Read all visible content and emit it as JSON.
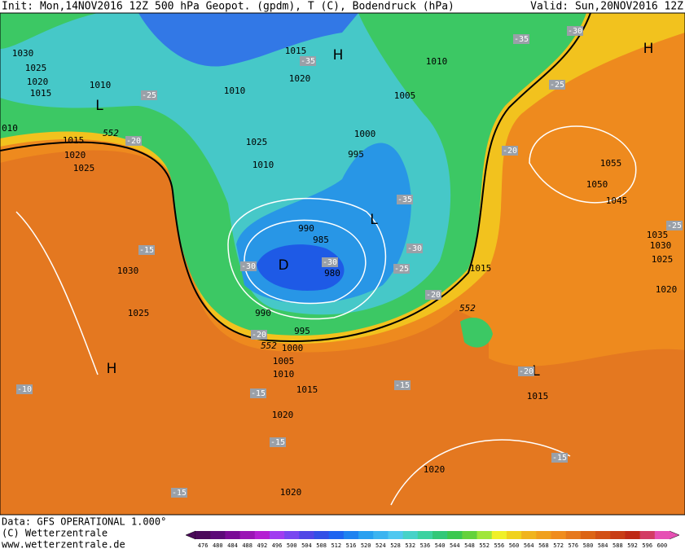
{
  "header": {
    "init": "Init: Mon,14NOV2016 12Z",
    "title": "500 hPa Geopot. (gpdm), T (C), Bodendruck (hPa)",
    "valid": "Valid: Sun,20NOV2016 12Z"
  },
  "footer": {
    "data": "Data: GFS OPERATIONAL 1.000°",
    "copyright": "(C) Wetterzentrale",
    "url": "www.wetterzentrale.de"
  },
  "map": {
    "pressure_labels": [
      "1030",
      "1025",
      "1020",
      "1015",
      "1010",
      "010",
      "1015",
      "1020",
      "1025",
      "1015",
      "1020",
      "1010",
      "1025",
      "1010",
      "1010",
      "1005",
      "1000",
      "995",
      "990",
      "985",
      "980",
      "990",
      "995",
      "1000",
      "1005",
      "1010",
      "1015",
      "1020",
      "1030",
      "1025",
      "1015",
      "1020",
      "1055",
      "1050",
      "1045",
      "1035",
      "1030",
      "1025",
      "1015",
      "1020",
      "1020"
    ],
    "centers": [
      "H",
      "H",
      "L",
      "L",
      "D",
      "H",
      "L"
    ],
    "temperature_labels": [
      "-35",
      "-30",
      "-35",
      "-25",
      "-25",
      "-20",
      "-20",
      "-35",
      "-15",
      "-30",
      "-30",
      "-25",
      "-30",
      "-20",
      "-25",
      "-20",
      "-20",
      "-15",
      "-15",
      "-15",
      "-15",
      "-15",
      "-10"
    ],
    "contour_labels": [
      "552",
      "552",
      "552"
    ]
  },
  "colorbar": {
    "labels": [
      "476",
      "480",
      "484",
      "488",
      "492",
      "496",
      "500",
      "504",
      "508",
      "512",
      "516",
      "520",
      "524",
      "528",
      "532",
      "536",
      "540",
      "544",
      "548",
      "552",
      "556",
      "560",
      "564",
      "568",
      "572",
      "576",
      "580",
      "584",
      "588",
      "592",
      "596",
      "600"
    ],
    "colors": [
      "#4b0a5a",
      "#5c0a78",
      "#7a0a96",
      "#9a14b4",
      "#b41ed2",
      "#a03cf0",
      "#7846f0",
      "#5046e6",
      "#3250e6",
      "#1e64f0",
      "#1e82f0",
      "#28a0f0",
      "#3cb4f0",
      "#50c8f0",
      "#46d2c8",
      "#3cd2a0",
      "#32c878",
      "#3cc850",
      "#64d23c",
      "#a0e63c",
      "#f0f028",
      "#f0d21e",
      "#f0b41e",
      "#f0a01e",
      "#f08c1e",
      "#e6781e",
      "#dc6414",
      "#d25014",
      "#c83c14",
      "#be2814",
      "#d23c64",
      "#e650b4"
    ]
  }
}
